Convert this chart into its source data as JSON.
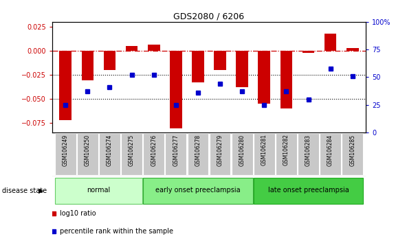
{
  "title": "GDS2080 / 6206",
  "samples": [
    "GSM106249",
    "GSM106250",
    "GSM106274",
    "GSM106275",
    "GSM106276",
    "GSM106277",
    "GSM106278",
    "GSM106279",
    "GSM106280",
    "GSM106281",
    "GSM106282",
    "GSM106283",
    "GSM106284",
    "GSM106285"
  ],
  "log10_ratio": [
    -0.072,
    -0.031,
    -0.02,
    0.005,
    0.006,
    -0.081,
    -0.033,
    -0.02,
    -0.038,
    -0.055,
    -0.06,
    -0.002,
    0.018,
    0.003
  ],
  "percentile_rank": [
    25,
    37,
    41,
    52,
    52,
    25,
    36,
    44,
    37,
    25,
    37,
    30,
    58,
    51
  ],
  "ylim_left": [
    -0.085,
    0.03
  ],
  "ylim_right": [
    0,
    100
  ],
  "yticks_left": [
    -0.075,
    -0.05,
    -0.025,
    0,
    0.025
  ],
  "yticks_right": [
    0,
    25,
    50,
    75,
    100
  ],
  "bar_color": "#cc0000",
  "dot_color": "#0000cc",
  "bar_width": 0.55,
  "groups": [
    {
      "label": "normal",
      "start": 0,
      "end": 4,
      "color": "#ccffcc",
      "edge": "#66cc66"
    },
    {
      "label": "early onset preeclampsia",
      "start": 4,
      "end": 9,
      "color": "#88ee88",
      "edge": "#33aa33"
    },
    {
      "label": "late onset preeclampsia",
      "start": 9,
      "end": 14,
      "color": "#44cc44",
      "edge": "#22aa22"
    }
  ],
  "legend_items": [
    {
      "label": "log10 ratio",
      "color": "#cc0000"
    },
    {
      "label": "percentile rank within the sample",
      "color": "#0000cc"
    }
  ],
  "disease_state_label": "disease state",
  "background_color": "#ffffff",
  "tick_label_color": "#c8c8c8"
}
